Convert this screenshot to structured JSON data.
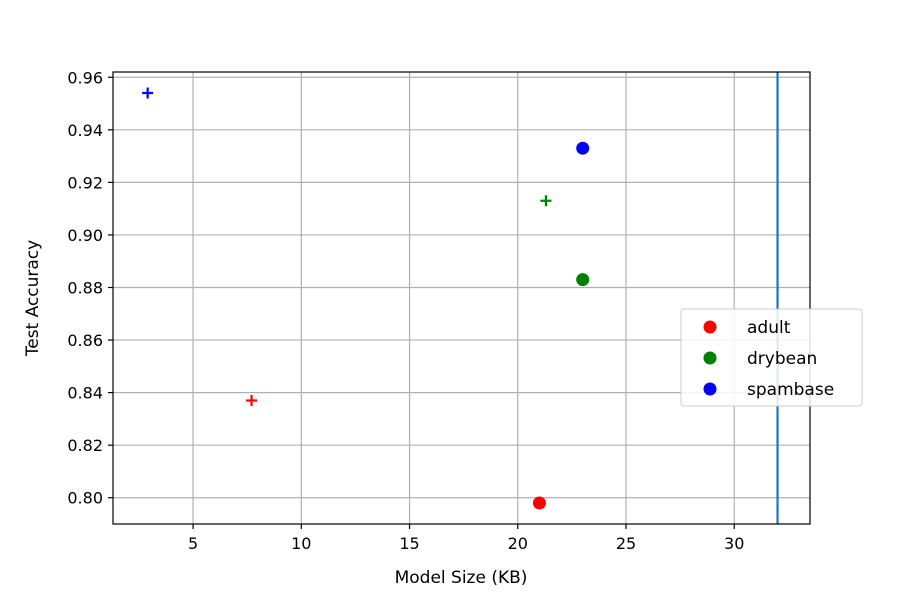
{
  "chart_data": {
    "type": "scatter",
    "xlabel": "Model Size (KB)",
    "ylabel": "Test Accuracy",
    "xlim": [
      1.3,
      33.5
    ],
    "ylim": [
      0.79,
      0.962
    ],
    "x_ticks": [
      5,
      10,
      15,
      20,
      25,
      30
    ],
    "x_tick_labels": [
      "5",
      "10",
      "15",
      "20",
      "25",
      "30"
    ],
    "y_ticks": [
      0.8,
      0.82,
      0.84,
      0.86,
      0.88,
      0.9,
      0.92,
      0.94,
      0.96
    ],
    "y_tick_labels": [
      "0.80",
      "0.82",
      "0.84",
      "0.86",
      "0.88",
      "0.90",
      "0.92",
      "0.94",
      "0.96"
    ],
    "grid": true,
    "legend_position": "center-right",
    "series": [
      {
        "name": "adult",
        "color": "#ff0000",
        "points": [
          {
            "x": 21.0,
            "y": 0.798,
            "marker": "circle"
          },
          {
            "x": 7.7,
            "y": 0.837,
            "marker": "plus"
          }
        ]
      },
      {
        "name": "drybean",
        "color": "#008000",
        "points": [
          {
            "x": 23.0,
            "y": 0.883,
            "marker": "circle"
          },
          {
            "x": 21.3,
            "y": 0.913,
            "marker": "plus"
          }
        ]
      },
      {
        "name": "spambase",
        "color": "#0000ff",
        "points": [
          {
            "x": 23.0,
            "y": 0.933,
            "marker": "circle"
          },
          {
            "x": 2.9,
            "y": 0.954,
            "marker": "plus"
          }
        ]
      }
    ],
    "vertical_lines": [
      {
        "x": 32.0,
        "color": "#1f77b4"
      }
    ]
  }
}
